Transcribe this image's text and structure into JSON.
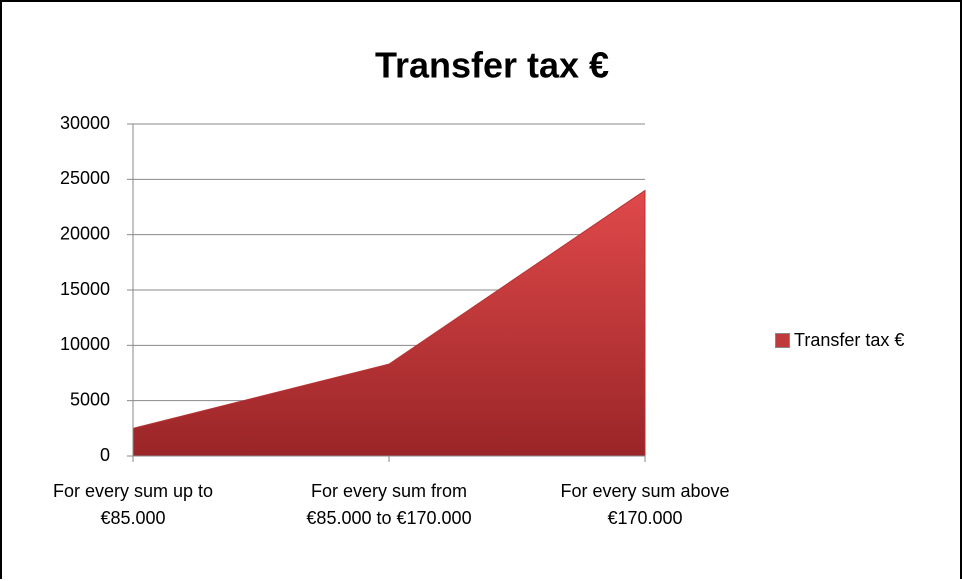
{
  "chart_data": {
    "type": "area",
    "title": "Transfer tax €",
    "categories": [
      "For every sum up to  €85.000",
      "For every sum from €85.000 to €170.000",
      "For every sum above €170.000"
    ],
    "series": [
      {
        "name": "Transfer tax €",
        "color": "#c0393b",
        "values": [
          2500,
          8300,
          24000
        ]
      }
    ],
    "ylim": [
      0,
      30000
    ],
    "yticks": [
      0,
      5000,
      10000,
      15000,
      20000,
      25000,
      30000
    ],
    "grid": true,
    "legend": "right"
  }
}
